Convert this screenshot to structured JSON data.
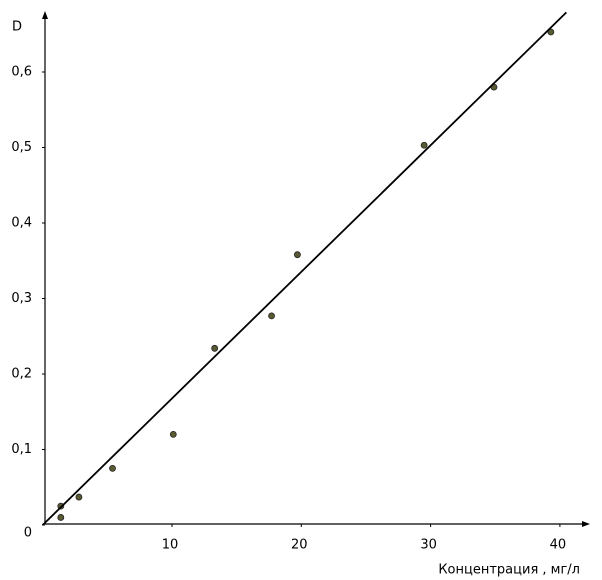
{
  "chart_data": {
    "type": "scatter",
    "y_label": "D",
    "x_label": "Концентрация  , мг/л",
    "xlim": [
      0,
      42
    ],
    "ylim": [
      0,
      0.68
    ],
    "xticks": [
      10,
      20,
      30,
      40
    ],
    "yticks": [
      0,
      {
        "value": 0.1,
        "label": "0,1"
      },
      {
        "value": 0.2,
        "label": "0,2"
      },
      {
        "value": 0.3,
        "label": "0,3"
      },
      {
        "value": 0.4,
        "label": "0,4"
      },
      {
        "value": 0.5,
        "label": "0,5"
      },
      {
        "value": 0.6,
        "label": "0,6"
      }
    ],
    "grid": false,
    "series": [
      {
        "mode": "points",
        "color": "#5a5a32",
        "x": [
          1.4,
          1.4,
          2.8,
          5.4,
          10.1,
          13.3,
          17.7,
          19.7,
          29.5,
          34.9,
          39.3
        ],
        "values": [
          0.01,
          0.025,
          0.037,
          0.075,
          0.12,
          0.234,
          0.277,
          0.358,
          0.503,
          0.58,
          0.653
        ]
      },
      {
        "mode": "line",
        "color": "#000000",
        "x": [
          0,
          40.5
        ],
        "values": [
          0,
          0.679
        ]
      }
    ]
  }
}
